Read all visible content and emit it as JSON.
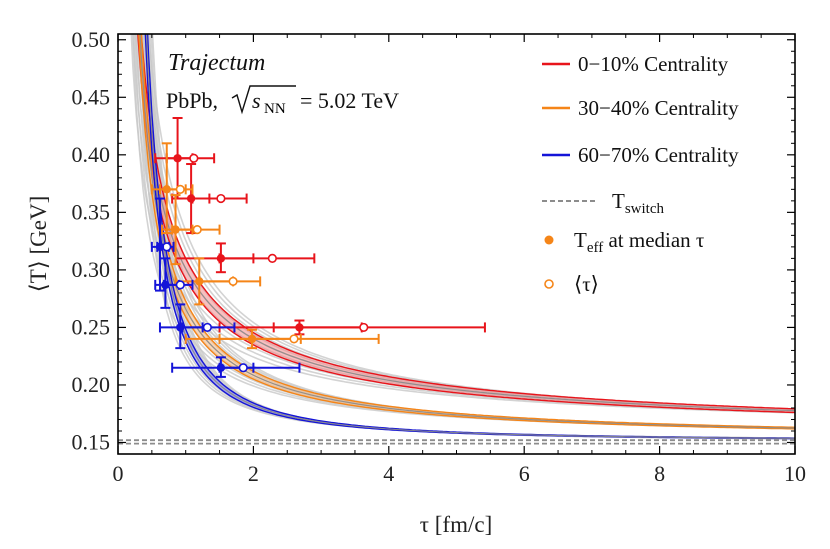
{
  "chart_data": {
    "type": "line",
    "title": "",
    "annotation_title": "Trajectum",
    "annotation_system": "PbPb,",
    "annotation_energy_symbol": "s",
    "annotation_energy_sub": "NN",
    "annotation_energy_value": "= 5.02 TeV",
    "xlabel": "τ [fm/c]",
    "ylabel": "⟨T⟩ [GeV]",
    "xlim": [
      0,
      10
    ],
    "ylim": [
      0.14,
      0.505
    ],
    "x_ticks": [
      0,
      2,
      4,
      6,
      8,
      10
    ],
    "x_tick_labels": [
      "0",
      "2",
      "4",
      "6",
      "8",
      "10"
    ],
    "y_ticks": [
      0.15,
      0.2,
      0.25,
      0.3,
      0.35,
      0.4,
      0.45,
      0.5
    ],
    "y_tick_labels": [
      "0.15",
      "0.20",
      "0.25",
      "0.30",
      "0.35",
      "0.40",
      "0.45",
      "0.50"
    ],
    "t_switch": 0.151,
    "series": [
      {
        "name": "0–10% Centrality",
        "color": "#e8141b",
        "band_color": "#f08a8c",
        "points": [
          {
            "tau": 0.88,
            "T": 0.397,
            "tau_lo": 0.55,
            "tau_hi": 1.1,
            "T_lo": 0.362,
            "T_hi": 0.432,
            "mean_tau": 1.12,
            "mean_tau_lo": 0.72,
            "mean_tau_hi": 1.42
          },
          {
            "tau": 1.08,
            "T": 0.362,
            "tau_lo": 0.8,
            "tau_hi": 1.35,
            "T_lo": 0.332,
            "T_hi": 0.392,
            "mean_tau": 1.52,
            "mean_tau_lo": 1.1,
            "mean_tau_hi": 1.9
          },
          {
            "tau": 1.52,
            "T": 0.31,
            "tau_lo": 0.85,
            "tau_hi": 2.0,
            "T_lo": 0.298,
            "T_hi": 0.323,
            "mean_tau": 2.28,
            "mean_tau_lo": 1.5,
            "mean_tau_hi": 2.9
          },
          {
            "tau": 2.68,
            "T": 0.25,
            "tau_lo": 1.5,
            "tau_hi": 3.6,
            "T_lo": 0.244,
            "T_hi": 0.256,
            "mean_tau": 3.63,
            "mean_tau_lo": 2.3,
            "mean_tau_hi": 5.42
          }
        ]
      },
      {
        "name": "30–40% Centrality",
        "color": "#f58518",
        "band_color": "#f7b77a",
        "points": [
          {
            "tau": 0.72,
            "T": 0.37,
            "tau_lo": 0.5,
            "tau_hi": 1.0,
            "T_lo": 0.332,
            "T_hi": 0.41,
            "mean_tau": 0.92,
            "mean_tau_lo": 0.62,
            "mean_tau_hi": 1.1
          },
          {
            "tau": 0.85,
            "T": 0.335,
            "tau_lo": 0.65,
            "tau_hi": 1.1,
            "T_lo": 0.305,
            "T_hi": 0.365,
            "mean_tau": 1.17,
            "mean_tau_lo": 0.8,
            "mean_tau_hi": 1.5
          },
          {
            "tau": 1.2,
            "T": 0.29,
            "tau_lo": 0.85,
            "tau_hi": 1.7,
            "T_lo": 0.27,
            "T_hi": 0.31,
            "mean_tau": 1.7,
            "mean_tau_lo": 1.2,
            "mean_tau_hi": 2.1
          },
          {
            "tau": 1.98,
            "T": 0.24,
            "tau_lo": 1.5,
            "tau_hi": 2.7,
            "T_lo": 0.232,
            "T_hi": 0.248,
            "mean_tau": 2.6,
            "mean_tau_lo": 1.0,
            "mean_tau_hi": 3.85
          }
        ]
      },
      {
        "name": "60–70% Centrality",
        "color": "#1414d8",
        "band_color": "#7a7af0",
        "points": [
          {
            "tau": 0.62,
            "T": 0.32,
            "tau_lo": 0.5,
            "tau_hi": 0.75,
            "T_lo": 0.282,
            "T_hi": 0.362,
            "mean_tau": 0.72,
            "mean_tau_lo": 0.58,
            "mean_tau_hi": 0.82
          },
          {
            "tau": 0.7,
            "T": 0.287,
            "tau_lo": 0.55,
            "tau_hi": 0.9,
            "T_lo": 0.267,
            "T_hi": 0.31,
            "mean_tau": 0.92,
            "mean_tau_lo": 0.68,
            "mean_tau_hi": 1.1
          },
          {
            "tau": 0.92,
            "T": 0.25,
            "tau_lo": 0.62,
            "tau_hi": 1.25,
            "T_lo": 0.232,
            "T_hi": 0.27,
            "mean_tau": 1.32,
            "mean_tau_lo": 0.95,
            "mean_tau_hi": 1.72
          },
          {
            "tau": 1.52,
            "T": 0.215,
            "tau_lo": 0.8,
            "tau_hi": 2.0,
            "T_lo": 0.207,
            "T_hi": 0.224,
            "mean_tau": 1.85,
            "mean_tau_lo": 1.5,
            "mean_tau_hi": 2.68
          }
        ]
      }
    ],
    "legend": {
      "placement": "top-right",
      "entries": [
        {
          "label": "0−10% Centrality",
          "kind": "line",
          "color": "#e8141b"
        },
        {
          "label": "30−40% Centrality",
          "kind": "line",
          "color": "#f58518"
        },
        {
          "label": "60−70% Centrality",
          "kind": "line",
          "color": "#1414d8"
        },
        {
          "label_main": "T",
          "label_sub": "switch",
          "kind": "dashed",
          "color": "#8c8c8c"
        },
        {
          "label_main": "T",
          "label_sub": "eff",
          "label_rest": " at median τ",
          "kind": "filled-dot",
          "color": "#f58518"
        },
        {
          "label": "⟨τ⟩",
          "kind": "open-dot",
          "color": "#f58518"
        }
      ]
    }
  }
}
